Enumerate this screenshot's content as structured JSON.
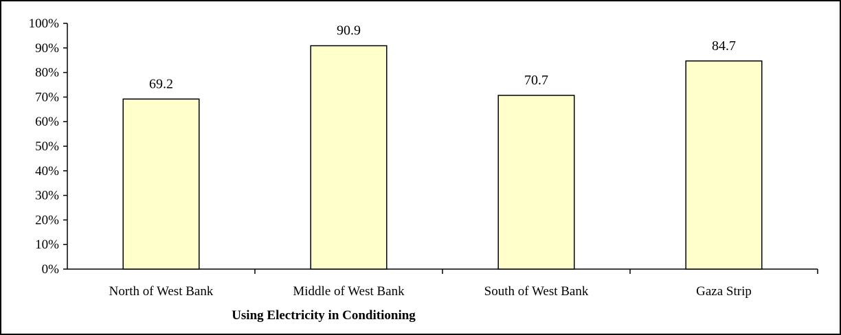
{
  "chart_data": {
    "type": "bar",
    "title": "",
    "xlabel": "Using Electricity in Conditioning",
    "ylabel": "",
    "categories": [
      "North of West Bank",
      "Middle of West Bank",
      "South of West Bank",
      "Gaza Strip"
    ],
    "values": [
      69.2,
      90.9,
      70.7,
      84.7
    ],
    "data_labels": [
      "69.2",
      "90.9",
      "70.7",
      "84.7"
    ],
    "ylim": [
      0,
      100
    ],
    "y_ticks": [
      "0%",
      "10%",
      "20%",
      "30%",
      "40%",
      "50%",
      "60%",
      "70%",
      "80%",
      "90%",
      "100%"
    ],
    "grid": false,
    "legend": "none",
    "colors": {
      "bar_fill": "#FFFFCC",
      "bar_stroke": "#000000",
      "axis": "#000000",
      "frame": "#000000"
    }
  }
}
